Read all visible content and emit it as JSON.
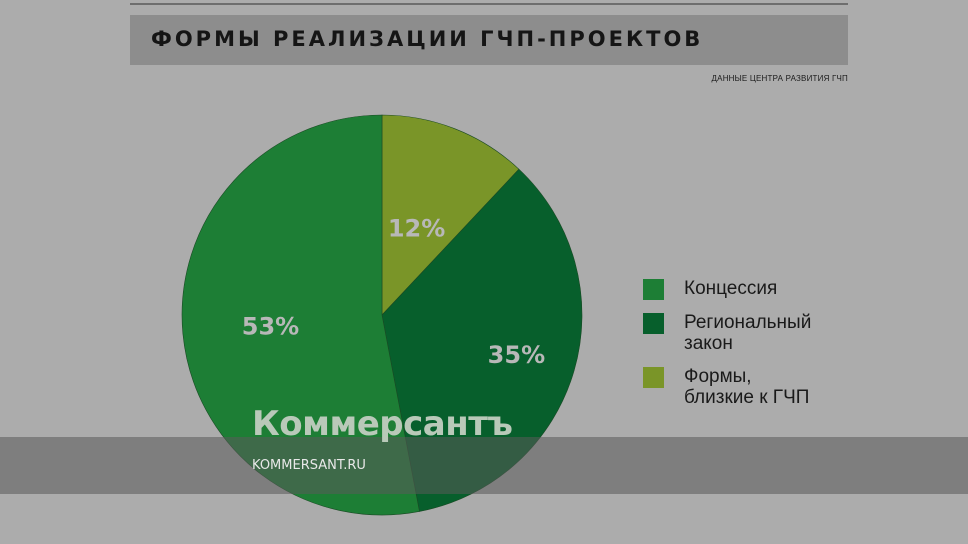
{
  "chart_data": {
    "type": "pie",
    "title": "ФОРМЫ РЕАЛИЗАЦИИ ГЧП-ПРОЕКТОВ",
    "source_note": "ДАННЫЕ ЦЕНТРА РАЗВИТИЯ ГЧП",
    "categories": [
      "Концессия",
      "Региональный\nзакон",
      "Формы,\nблизкие к ГЧП"
    ],
    "values": [
      53,
      35,
      12
    ],
    "value_labels": [
      "53%",
      "35%",
      "12%"
    ],
    "colors": [
      "#1d7e35",
      "#075f2c",
      "#7a9528"
    ],
    "legend_placement": "right"
  },
  "watermark": {
    "logo": "Коммерсантъ",
    "url": "KOMMERSANT.RU"
  }
}
